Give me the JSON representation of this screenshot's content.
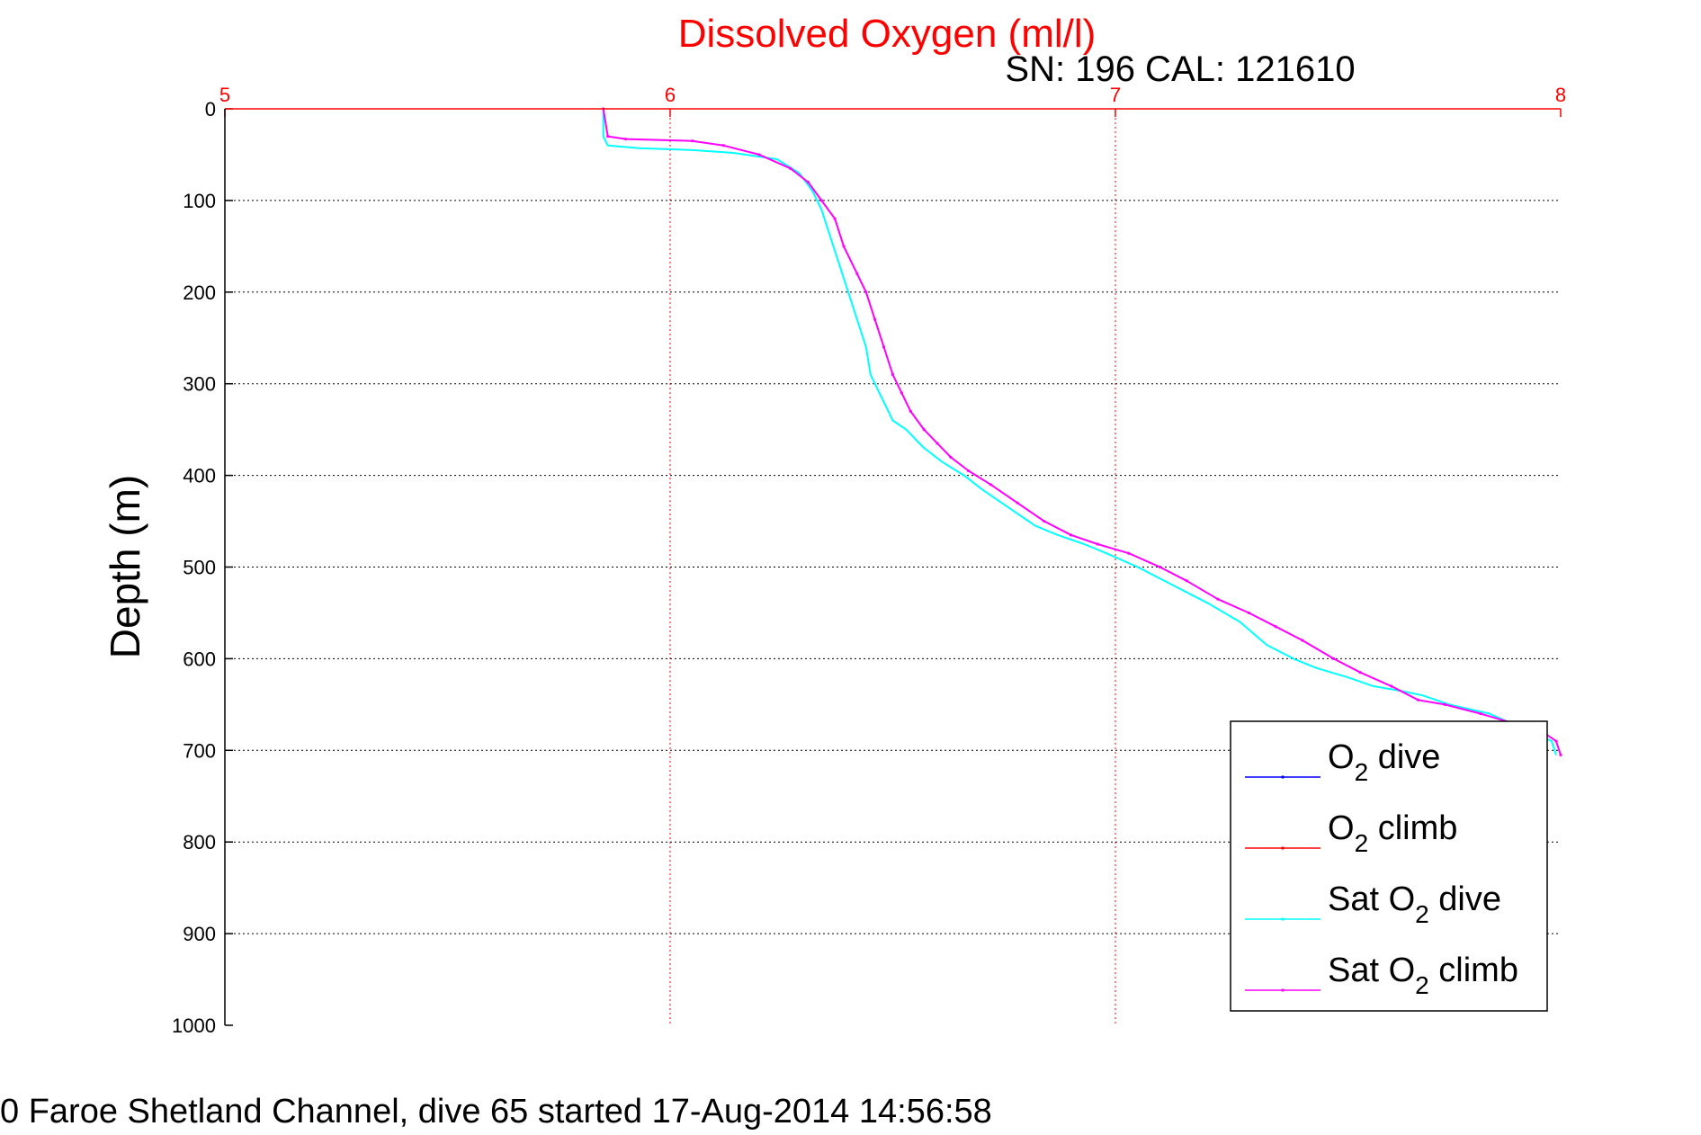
{
  "chart_data": {
    "type": "line",
    "title": "Dissolved Oxygen (ml/l)",
    "subtitle": "SN: 196  CAL: 121610",
    "ylabel": "Depth (m)",
    "xlabel": "",
    "footer": "0 Faroe Shetland Channel, dive 65 started 17-Aug-2014 14:56:58",
    "xlim": [
      5,
      8
    ],
    "ylim": [
      0,
      1000
    ],
    "y_reversed": true,
    "x_axis_position": "top",
    "x_ticks": [
      "5",
      "6",
      "7",
      "8"
    ],
    "y_ticks": [
      "0",
      "100",
      "200",
      "300",
      "400",
      "500",
      "600",
      "700",
      "800",
      "900",
      "1000"
    ],
    "grid": true,
    "legend_position": "lower-right",
    "colors": {
      "title": "#ff0000",
      "x_tick_labels": "#ff0000",
      "grid_vertical": "#ff0000",
      "grid_horizontal": "#000000",
      "axes": "#000000"
    },
    "series": [
      {
        "name": "O2 dive",
        "legend": {
          "prefix": "O",
          "sub": "2",
          "suffix": " dive"
        },
        "color": "#0000ff",
        "x": [],
        "y": []
      },
      {
        "name": "O2 climb",
        "legend": {
          "prefix": "O",
          "sub": "2",
          "suffix": " climb"
        },
        "color": "#ff0000",
        "x": [],
        "y": []
      },
      {
        "name": "Sat O2 dive",
        "legend": {
          "prefix": "Sat O",
          "sub": "2",
          "suffix": " dive"
        },
        "color": "#00ffff",
        "x": [
          5.85,
          5.85,
          5.86,
          5.93,
          6.05,
          6.14,
          6.24,
          6.29,
          6.32,
          6.34,
          6.36,
          6.38,
          6.4,
          6.42,
          6.44,
          6.45,
          6.47,
          6.49,
          6.5,
          6.53,
          6.55,
          6.57,
          6.61,
          6.66,
          6.7,
          6.76,
          6.82,
          6.87,
          6.93,
          6.98,
          7.05,
          7.13,
          7.21,
          7.28,
          7.34,
          7.4,
          7.45,
          7.52,
          7.58,
          7.64,
          7.69,
          7.75,
          7.84,
          7.91,
          7.98,
          7.99
        ],
        "y": [
          0,
          30,
          40,
          43,
          45,
          48,
          55,
          70,
          90,
          110,
          140,
          170,
          200,
          230,
          260,
          290,
          310,
          330,
          340,
          350,
          360,
          370,
          385,
          400,
          415,
          435,
          455,
          465,
          475,
          485,
          500,
          520,
          540,
          560,
          585,
          600,
          610,
          620,
          630,
          635,
          640,
          650,
          660,
          675,
          690,
          705
        ],
        "markers": false
      },
      {
        "name": "Sat O2 climb",
        "legend": {
          "prefix": "Sat O",
          "sub": "2",
          "suffix": " climb"
        },
        "color": "#ff00ff",
        "x": [
          5.85,
          5.86,
          5.9,
          6.05,
          6.12,
          6.2,
          6.27,
          6.31,
          6.34,
          6.37,
          6.39,
          6.42,
          6.44,
          6.46,
          6.48,
          6.5,
          6.52,
          6.54,
          6.57,
          6.6,
          6.63,
          6.67,
          6.72,
          6.78,
          6.84,
          6.9,
          6.96,
          7.03,
          7.1,
          7.16,
          7.23,
          7.3,
          7.36,
          7.42,
          7.49,
          7.55,
          7.62,
          7.68,
          7.74,
          7.82,
          7.89,
          7.96,
          7.99,
          8.0
        ],
        "y": [
          0,
          30,
          33,
          35,
          40,
          50,
          65,
          80,
          100,
          120,
          150,
          180,
          200,
          230,
          260,
          290,
          310,
          330,
          350,
          365,
          380,
          395,
          410,
          430,
          450,
          465,
          475,
          485,
          500,
          515,
          535,
          550,
          565,
          580,
          600,
          615,
          630,
          645,
          650,
          660,
          670,
          680,
          690,
          705
        ],
        "markers": true
      }
    ]
  }
}
